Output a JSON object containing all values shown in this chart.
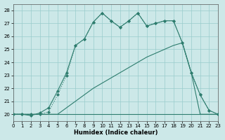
{
  "xlabel": "Humidex (Indice chaleur)",
  "xlim": [
    0,
    23
  ],
  "ylim": [
    19.5,
    28.5
  ],
  "yticks": [
    20,
    21,
    22,
    23,
    24,
    25,
    26,
    27,
    28
  ],
  "xticks": [
    0,
    1,
    2,
    3,
    4,
    5,
    6,
    7,
    8,
    9,
    10,
    11,
    12,
    13,
    14,
    15,
    16,
    17,
    18,
    19,
    20,
    21,
    22,
    23
  ],
  "background_color": "#cce8e8",
  "grid_color": "#99cccc",
  "line_color": "#2e7d6e",
  "series": [
    {
      "x": [
        0,
        1,
        2,
        3,
        4,
        5,
        6,
        7,
        8,
        9,
        10,
        11,
        12,
        13,
        14,
        15,
        16,
        17,
        18,
        19,
        20,
        21,
        22,
        23
      ],
      "y": [
        20,
        20,
        20,
        20,
        20,
        20,
        20,
        20,
        20,
        20,
        20,
        20,
        20,
        20,
        20,
        20,
        20,
        20,
        20,
        20,
        20,
        20,
        20,
        20
      ],
      "has_marker": false,
      "linestyle": "-"
    },
    {
      "x": [
        0,
        1,
        2,
        3,
        4,
        5,
        6,
        7,
        8,
        9,
        10,
        11,
        12,
        13,
        14,
        15,
        16,
        17,
        18,
        19,
        20,
        21,
        22,
        23
      ],
      "y": [
        20,
        20,
        20,
        20,
        20,
        20,
        20.5,
        21.0,
        21.5,
        22.0,
        22.4,
        22.8,
        23.2,
        23.6,
        24.0,
        24.4,
        24.7,
        25.0,
        25.3,
        25.5,
        23.2,
        20,
        20,
        20
      ],
      "has_marker": false,
      "linestyle": "-"
    },
    {
      "x": [
        0,
        1,
        2,
        3,
        4,
        5,
        6,
        7,
        8,
        9,
        10,
        11,
        12,
        13,
        14,
        15,
        16,
        17,
        18,
        19,
        20,
        21,
        22,
        23
      ],
      "y": [
        20,
        20,
        20,
        20,
        20.2,
        21.5,
        23.0,
        25.3,
        25.8,
        27.1,
        27.8,
        27.2,
        26.7,
        27.2,
        27.8,
        26.8,
        27.0,
        27.2,
        27.2,
        25.5,
        23.2,
        21.5,
        20.3,
        20
      ],
      "has_marker": true,
      "linestyle": ":"
    },
    {
      "x": [
        0,
        1,
        2,
        3,
        4,
        5,
        6,
        7,
        8,
        9,
        10,
        11,
        12,
        13,
        14,
        15,
        16,
        17,
        18,
        19,
        20,
        21,
        22,
        23
      ],
      "y": [
        20,
        20,
        19.9,
        20.1,
        20.5,
        21.8,
        23.2,
        25.3,
        25.8,
        27.1,
        27.8,
        27.2,
        26.7,
        27.2,
        27.8,
        26.8,
        27.0,
        27.2,
        27.2,
        25.5,
        23.2,
        21.5,
        20.3,
        20
      ],
      "has_marker": true,
      "linestyle": "-"
    }
  ]
}
